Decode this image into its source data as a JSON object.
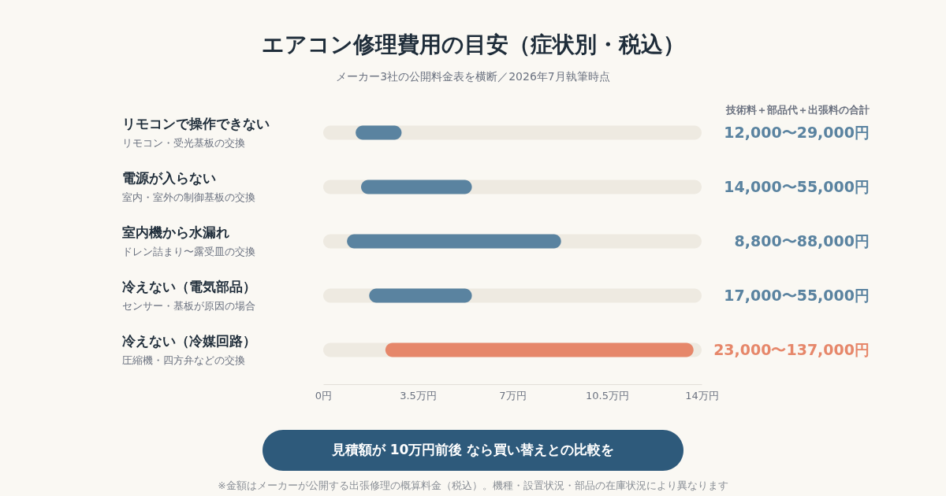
{
  "chart_data": {
    "type": "bar",
    "orientation": "horizontal",
    "title": "エアコン修理費用の目安（症状別・税込）",
    "subtitle": "メーカー3社の公開料金表を横断／2026年7月執筆時点",
    "categories": [
      "リモコンで操作できない",
      "電源が入らない",
      "室内機から水漏れ",
      "冷えない（電気部品）",
      "冷えない（冷媒回路）"
    ],
    "base": [
      1.2,
      1.4,
      0.88,
      1.7,
      2.3
    ],
    "values": [
      1.7,
      4.1,
      7.92,
      3.8,
      11.4
    ],
    "colors": [
      "#5a83a0",
      "#5a83a0",
      "#5a83a0",
      "#5a83a0",
      "#e6876a"
    ],
    "xlim": [
      0,
      14
    ],
    "xticks": [
      {
        "value": 0,
        "label": "0円"
      },
      {
        "value": 3.5,
        "label": "3.5万円"
      },
      {
        "value": 7,
        "label": "7万円"
      },
      {
        "value": 10.5,
        "label": "10.5万円"
      },
      {
        "value": 14,
        "label": "14万円"
      }
    ],
    "annotations": [
      "リモコン・受光基板の交換",
      "室内・室外の制御基板の交換",
      "ドレン詰まり〜露受皿の交換",
      "センサー・基板が原因の場合",
      "圧縮機・四方弁などの交換",
      "12,000〜29,000円",
      "14,000〜55,000円",
      "8,800〜88,000円",
      "17,000〜55,000円",
      "23,000〜137,000円",
      "技術料＋部品代＋出張料の合計",
      "見積額が 10万円前後 なら買い替えとの比較を",
      "※金額はメーカーが公開する出張修理の概算料金（税込）。機種・設置状況・部品の在庫状況により異なります"
    ]
  }
}
